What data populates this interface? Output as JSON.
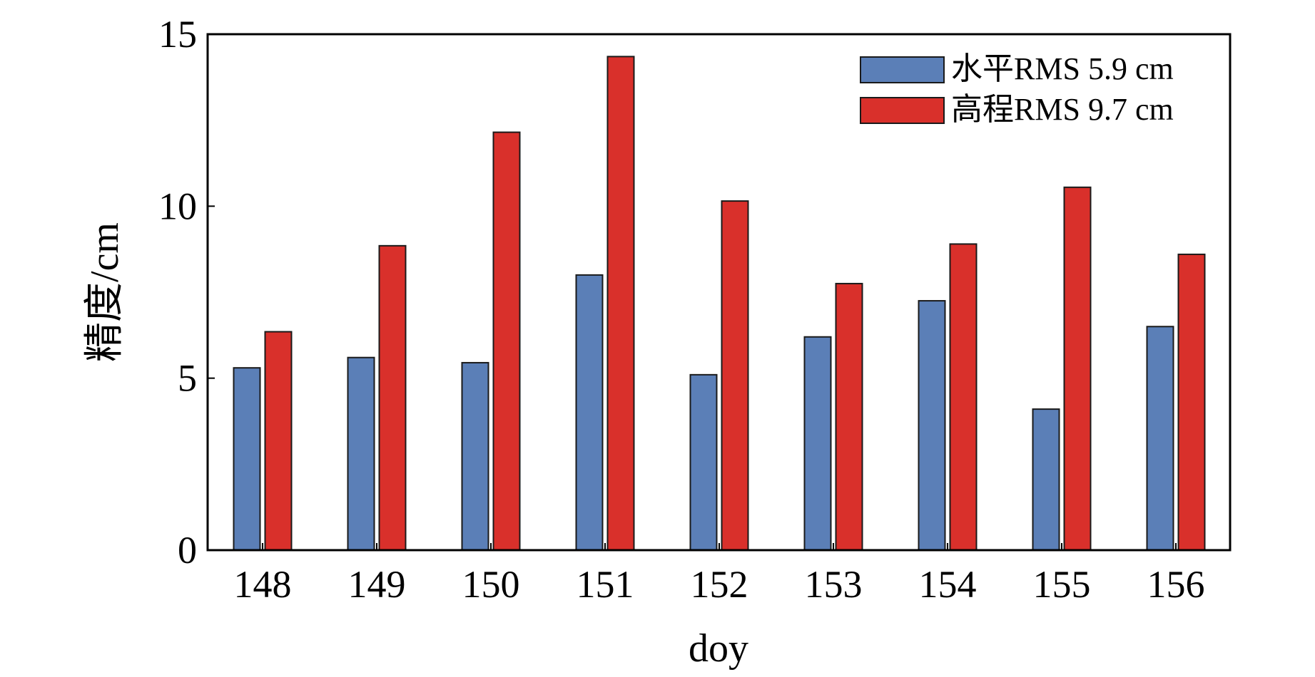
{
  "chart_data": {
    "type": "bar",
    "categories": [
      "148",
      "149",
      "150",
      "151",
      "152",
      "153",
      "154",
      "155",
      "156"
    ],
    "series": [
      {
        "name": "水平RMS 5.9 cm",
        "color": "#5b7fb7",
        "values": [
          5.3,
          5.6,
          5.45,
          8.0,
          5.1,
          6.2,
          7.25,
          4.1,
          6.5
        ]
      },
      {
        "name": "高程RMS 9.7 cm",
        "color": "#d9302b",
        "values": [
          6.35,
          8.85,
          12.15,
          14.35,
          10.15,
          7.75,
          8.9,
          10.55,
          8.6
        ]
      }
    ],
    "title": "",
    "xlabel": "doy",
    "ylabel": "精度/cm",
    "ylim": [
      0,
      15
    ],
    "yticks": [
      0,
      5,
      10,
      15
    ],
    "grid": false,
    "legend_position": "top-right"
  }
}
